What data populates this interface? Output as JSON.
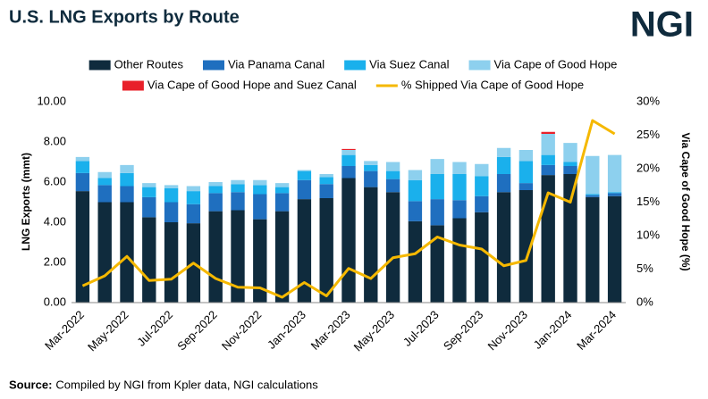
{
  "chart_data": {
    "type": "bar",
    "stacked": true,
    "title": "U.S. LNG Exports by Route",
    "logo": "NGI",
    "y_label": "LNG Exports (mmt)",
    "y2_label": "Via Cape of Good Hope (%)",
    "source_label": "Source:",
    "source_text": "Compiled by NGI from Kpler data, NGI calculations",
    "categories": [
      "Mar-2022",
      null,
      "May-2022",
      null,
      "Jul-2022",
      null,
      "Sep-2022",
      null,
      "Nov-2022",
      null,
      "Jan-2023",
      null,
      "Mar-2023",
      null,
      "May-2023",
      null,
      "Jul-2023",
      null,
      "Sep-2023",
      null,
      "Nov-2023",
      null,
      "Jan-2024",
      null,
      "Mar-2024"
    ],
    "series": [
      {
        "name": "Other Routes",
        "color": "#0f2b3d",
        "values": [
          5.55,
          5.0,
          5.0,
          4.25,
          4.0,
          3.95,
          4.55,
          4.6,
          4.15,
          4.55,
          5.15,
          5.2,
          6.2,
          5.75,
          5.5,
          4.05,
          3.85,
          4.2,
          4.5,
          5.5,
          5.6,
          6.35,
          6.4,
          5.25,
          5.3
        ]
      },
      {
        "name": "Via Panama Canal",
        "color": "#1f6fbf",
        "values": [
          0.9,
          0.85,
          0.8,
          1.0,
          1.0,
          0.95,
          0.9,
          0.9,
          1.25,
          0.9,
          0.95,
          0.7,
          0.6,
          0.8,
          0.65,
          1.0,
          1.3,
          0.9,
          0.8,
          0.9,
          0.35,
          0.5,
          0.4,
          0.1,
          0.15
        ]
      },
      {
        "name": "Via Suez Canal",
        "color": "#1ab0ec",
        "values": [
          0.6,
          0.35,
          0.65,
          0.5,
          0.7,
          0.65,
          0.35,
          0.4,
          0.45,
          0.3,
          0.45,
          0.35,
          0.55,
          0.3,
          0.4,
          1.05,
          1.25,
          1.3,
          1.0,
          0.85,
          1.1,
          0.5,
          0.2,
          0.05,
          0.05
        ]
      },
      {
        "name": "Via Cape of Good Hope",
        "color": "#8dd0ee",
        "values": [
          0.2,
          0.3,
          0.4,
          0.2,
          0.15,
          0.25,
          0.2,
          0.2,
          0.25,
          0.2,
          0.05,
          0.15,
          0.25,
          0.2,
          0.45,
          0.5,
          0.75,
          0.6,
          0.6,
          0.45,
          0.55,
          1.05,
          0.95,
          1.9,
          1.85
        ]
      },
      {
        "name": "Via Cape of Good Hope and Suez Canal",
        "color": "#e8202a",
        "values": [
          0,
          0,
          0,
          0,
          0,
          0,
          0,
          0,
          0,
          0,
          0,
          0,
          0.05,
          0,
          0,
          0,
          0,
          0,
          0,
          0,
          0,
          0.1,
          0,
          0,
          0
        ]
      },
      {
        "name": "% Shipped Via Cape of Good Hope",
        "color": "#f5b800",
        "type": "line",
        "axis": "y2",
        "values": [
          2.5,
          4.0,
          6.9,
          3.3,
          3.5,
          5.9,
          3.6,
          2.3,
          2.2,
          0.8,
          3.0,
          1.0,
          5.1,
          3.6,
          6.7,
          7.3,
          9.8,
          8.6,
          8.0,
          5.5,
          6.3,
          16.4,
          15.0,
          27.2,
          25.2
        ]
      }
    ],
    "ylim": [
      0,
      10
    ],
    "yticks": [
      {
        "value": 0,
        "label": "0.00"
      },
      {
        "value": 2,
        "label": "2.00"
      },
      {
        "value": 4,
        "label": "4.00"
      },
      {
        "value": 6,
        "label": "6.00"
      },
      {
        "value": 8,
        "label": "8.00"
      },
      {
        "value": 10,
        "label": "10.00"
      }
    ],
    "y2lim": [
      0,
      30
    ],
    "y2ticks": [
      {
        "value": 0,
        "label": "0%"
      },
      {
        "value": 5,
        "label": "5%"
      },
      {
        "value": 10,
        "label": "10%"
      },
      {
        "value": 15,
        "label": "15%"
      },
      {
        "value": 20,
        "label": "20%"
      },
      {
        "value": 25,
        "label": "25%"
      },
      {
        "value": 30,
        "label": "30%"
      }
    ],
    "grid": false
  }
}
